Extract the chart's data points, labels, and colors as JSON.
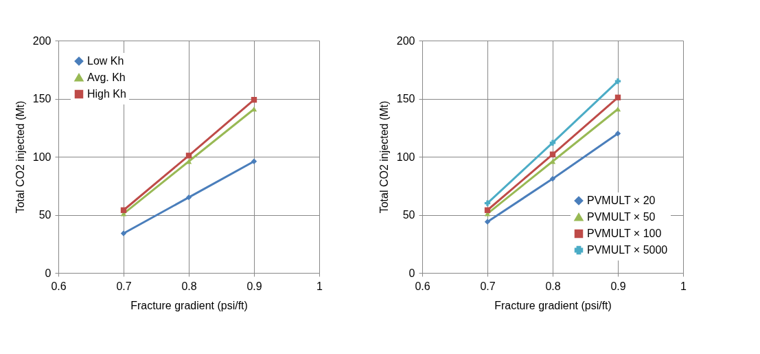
{
  "chart_data": [
    {
      "type": "line",
      "xlabel": "Fracture gradient (psi/ft)",
      "ylabel": "Total CO2 injected (Mt)",
      "x": [
        0.7,
        0.8,
        0.9
      ],
      "xlim": [
        0.6,
        1
      ],
      "xticks": [
        0.6,
        0.7,
        0.8,
        0.9,
        1
      ],
      "ylim": [
        0,
        200
      ],
      "yticks": [
        0,
        50,
        100,
        150,
        200
      ],
      "grid": true,
      "legend": "top left",
      "series": [
        {
          "name": "Low Kh",
          "color": "#4a7ebb",
          "marker": "diamond",
          "values": [
            34,
            65,
            96
          ]
        },
        {
          "name": "Avg. Kh",
          "color": "#98b954",
          "marker": "triangle",
          "values": [
            51,
            96,
            141
          ]
        },
        {
          "name": "High Kh",
          "color": "#be4b48",
          "marker": "square",
          "values": [
            54,
            101,
            149
          ]
        }
      ]
    },
    {
      "type": "line",
      "xlabel": "Fracture gradient (psi/ft)",
      "ylabel": "Total CO2 injected (Mt)",
      "x": [
        0.7,
        0.8,
        0.9
      ],
      "xlim": [
        0.6,
        1
      ],
      "xticks": [
        0.6,
        0.7,
        0.8,
        0.9,
        1
      ],
      "ylim": [
        0,
        200
      ],
      "yticks": [
        0,
        50,
        100,
        150,
        200
      ],
      "grid": true,
      "legend": "bottom right",
      "series": [
        {
          "name": "PVMULT × 20",
          "color": "#4a7ebb",
          "marker": "diamond",
          "values": [
            44,
            81,
            120
          ]
        },
        {
          "name": "PVMULT × 50",
          "color": "#98b954",
          "marker": "triangle",
          "values": [
            51,
            96,
            141
          ]
        },
        {
          "name": "PVMULT × 100",
          "color": "#be4b48",
          "marker": "square",
          "values": [
            54,
            102,
            151
          ]
        },
        {
          "name": "PVMULT × 5000",
          "color": "#4bacc6",
          "marker": "cross",
          "values": [
            60,
            112,
            165
          ]
        }
      ]
    }
  ]
}
